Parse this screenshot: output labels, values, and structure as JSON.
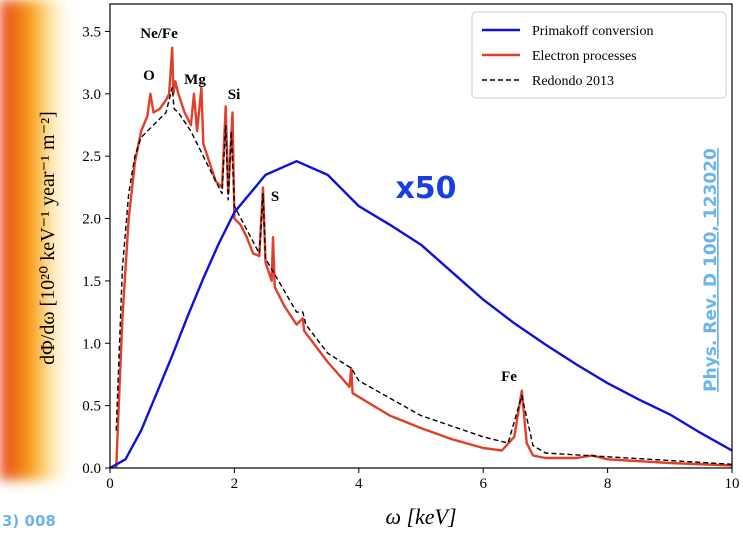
{
  "chart_data": {
    "type": "line",
    "xlabel": "ω  [keV]",
    "ylabel": "dΦ/dω  [10²⁰ keV⁻¹ year⁻¹ m⁻²]",
    "scale_note": "x50",
    "citation": "Phys. Rev. D 100, 123020",
    "left_caption": "3) 008",
    "xlim": [
      0,
      10
    ],
    "ylim": [
      0,
      3.72
    ],
    "xticks": [
      0,
      2,
      4,
      6,
      8,
      10
    ],
    "yticks": [
      {
        "value": 0,
        "label": "0.0"
      },
      0.5,
      {
        "value": 1,
        "label": "1.0"
      },
      1.5,
      {
        "value": 2,
        "label": "2.0"
      },
      2.5,
      {
        "value": 3,
        "label": "3.0"
      },
      3.5
    ],
    "legend": "upper right",
    "annotations": [
      "Ne/Fe",
      "O",
      "Mg",
      "Si",
      "S",
      "Fe"
    ],
    "series": [
      {
        "name": "Primakoff conversion",
        "color": "#1010dd",
        "style": "solid",
        "x": [
          0,
          0.25,
          0.5,
          0.75,
          1,
          1.25,
          1.5,
          1.75,
          2,
          2.5,
          3,
          3.5,
          4,
          4.5,
          5,
          5.5,
          6,
          6.5,
          7,
          7.5,
          8,
          8.5,
          9,
          9.5,
          10
        ],
        "values": [
          0,
          0.07,
          0.3,
          0.6,
          0.9,
          1.22,
          1.52,
          1.8,
          2.05,
          2.35,
          2.46,
          2.35,
          2.1,
          1.95,
          1.79,
          1.57,
          1.35,
          1.16,
          0.99,
          0.83,
          0.68,
          0.55,
          0.43,
          0.28,
          0.14
        ]
      },
      {
        "name": "Electron processes",
        "color": "#e0402a",
        "style": "solid",
        "x": [
          0.1,
          0.2,
          0.3,
          0.4,
          0.5,
          0.6,
          0.65,
          0.7,
          0.8,
          0.9,
          0.95,
          1.0,
          1.02,
          1.05,
          1.1,
          1.2,
          1.3,
          1.35,
          1.4,
          1.47,
          1.5,
          1.6,
          1.7,
          1.8,
          1.86,
          1.9,
          1.97,
          2.0,
          2.1,
          2.2,
          2.3,
          2.4,
          2.46,
          2.5,
          2.6,
          2.62,
          2.65,
          2.8,
          3.0,
          3.1,
          3.12,
          3.5,
          3.85,
          3.88,
          3.9,
          4.5,
          5,
          5.5,
          6,
          6.3,
          6.5,
          6.62,
          6.7,
          6.8,
          7,
          7.5,
          7.75,
          8,
          9,
          10
        ],
        "values": [
          0,
          1.2,
          2.0,
          2.45,
          2.7,
          2.82,
          3.0,
          2.85,
          2.88,
          2.95,
          3.0,
          3.37,
          3.0,
          3.1,
          3.0,
          2.85,
          2.75,
          3.0,
          2.7,
          3.05,
          2.6,
          2.45,
          2.3,
          2.25,
          2.9,
          2.2,
          2.85,
          2.0,
          1.95,
          1.85,
          1.72,
          1.7,
          2.25,
          1.65,
          1.5,
          1.85,
          1.45,
          1.3,
          1.15,
          1.2,
          1.1,
          0.85,
          0.65,
          0.8,
          0.6,
          0.42,
          0.32,
          0.23,
          0.16,
          0.14,
          0.25,
          0.62,
          0.2,
          0.1,
          0.08,
          0.08,
          0.1,
          0.07,
          0.04,
          0.02
        ]
      },
      {
        "name": "Redondo 2013",
        "color": "#000000",
        "style": "dashed",
        "x": [
          0.1,
          0.2,
          0.3,
          0.4,
          0.5,
          0.7,
          0.9,
          1.0,
          1.03,
          1.1,
          1.3,
          1.5,
          1.7,
          1.8,
          1.86,
          1.9,
          1.95,
          2.0,
          2.4,
          2.46,
          2.5,
          3.0,
          3.1,
          3.15,
          3.5,
          3.88,
          4.0,
          5.0,
          6.0,
          6.4,
          6.62,
          6.8,
          7.0,
          8.0,
          9.0,
          10.0
        ],
        "values": [
          0.3,
          1.6,
          2.2,
          2.5,
          2.65,
          2.75,
          2.85,
          3.05,
          2.88,
          2.85,
          2.7,
          2.5,
          2.3,
          2.2,
          2.75,
          2.15,
          2.7,
          2.1,
          1.72,
          2.2,
          1.68,
          1.25,
          1.25,
          1.15,
          0.92,
          0.8,
          0.7,
          0.42,
          0.25,
          0.2,
          0.58,
          0.18,
          0.12,
          0.09,
          0.06,
          0.03
        ]
      }
    ]
  }
}
